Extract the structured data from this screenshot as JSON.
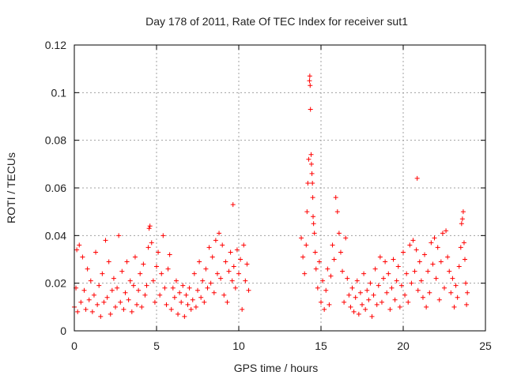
{
  "chart_data": {
    "type": "scatter",
    "title": "Day 178 of 2011, Rate Of TEC Index for receiver sut1",
    "xlabel": "GPS time / hours",
    "ylabel": "ROTI / TECUs",
    "xlim": [
      0,
      25
    ],
    "ylim": [
      0,
      0.12
    ],
    "x_ticks": [
      "0",
      "5",
      "10",
      "15",
      "20",
      "25"
    ],
    "y_ticks": [
      "0",
      "0.02",
      "0.04",
      "0.06",
      "0.08",
      "0.1",
      "0.12"
    ],
    "grid": true,
    "legend": "none",
    "marker": "plus",
    "color": "#ff0000",
    "points": [
      [
        0.0,
        0.01
      ],
      [
        0.1,
        0.018
      ],
      [
        0.15,
        0.034
      ],
      [
        0.2,
        0.008
      ],
      [
        0.3,
        0.036
      ],
      [
        0.4,
        0.012
      ],
      [
        0.5,
        0.031
      ],
      [
        0.6,
        0.017
      ],
      [
        0.7,
        0.009
      ],
      [
        0.8,
        0.026
      ],
      [
        0.9,
        0.013
      ],
      [
        1.0,
        0.021
      ],
      [
        1.1,
        0.008
      ],
      [
        1.2,
        0.015
      ],
      [
        1.3,
        0.033
      ],
      [
        1.4,
        0.011
      ],
      [
        1.5,
        0.019
      ],
      [
        1.6,
        0.006
      ],
      [
        1.7,
        0.024
      ],
      [
        1.8,
        0.012
      ],
      [
        1.9,
        0.038
      ],
      [
        2.0,
        0.014
      ],
      [
        2.1,
        0.029
      ],
      [
        2.2,
        0.007
      ],
      [
        2.3,
        0.017
      ],
      [
        2.4,
        0.022
      ],
      [
        2.5,
        0.01
      ],
      [
        2.6,
        0.018
      ],
      [
        2.7,
        0.04
      ],
      [
        2.8,
        0.012
      ],
      [
        2.9,
        0.025
      ],
      [
        3.0,
        0.009
      ],
      [
        3.1,
        0.016
      ],
      [
        3.2,
        0.029
      ],
      [
        3.3,
        0.013
      ],
      [
        3.4,
        0.021
      ],
      [
        3.5,
        0.008
      ],
      [
        3.6,
        0.019
      ],
      [
        3.7,
        0.031
      ],
      [
        3.8,
        0.011
      ],
      [
        3.9,
        0.017
      ],
      [
        4.0,
        0.024
      ],
      [
        4.1,
        0.01
      ],
      [
        4.2,
        0.028
      ],
      [
        4.3,
        0.015
      ],
      [
        4.4,
        0.019
      ],
      [
        4.5,
        0.035
      ],
      [
        4.55,
        0.043
      ],
      [
        4.6,
        0.044
      ],
      [
        4.7,
        0.037
      ],
      [
        4.8,
        0.021
      ],
      [
        4.9,
        0.012
      ],
      [
        5.0,
        0.027
      ],
      [
        5.1,
        0.033
      ],
      [
        5.2,
        0.015
      ],
      [
        5.3,
        0.024
      ],
      [
        5.4,
        0.04
      ],
      [
        5.5,
        0.018
      ],
      [
        5.6,
        0.011
      ],
      [
        5.7,
        0.026
      ],
      [
        5.8,
        0.032
      ],
      [
        5.9,
        0.009
      ],
      [
        6.0,
        0.018
      ],
      [
        6.1,
        0.014
      ],
      [
        6.2,
        0.021
      ],
      [
        6.3,
        0.007
      ],
      [
        6.4,
        0.016
      ],
      [
        6.5,
        0.012
      ],
      [
        6.6,
        0.019
      ],
      [
        6.7,
        0.006
      ],
      [
        6.8,
        0.015
      ],
      [
        6.9,
        0.011
      ],
      [
        7.0,
        0.018
      ],
      [
        7.1,
        0.009
      ],
      [
        7.2,
        0.013
      ],
      [
        7.3,
        0.024
      ],
      [
        7.4,
        0.01
      ],
      [
        7.5,
        0.017
      ],
      [
        7.6,
        0.029
      ],
      [
        7.7,
        0.014
      ],
      [
        7.8,
        0.021
      ],
      [
        7.9,
        0.012
      ],
      [
        8.0,
        0.026
      ],
      [
        8.1,
        0.018
      ],
      [
        8.2,
        0.035
      ],
      [
        8.3,
        0.02
      ],
      [
        8.4,
        0.031
      ],
      [
        8.5,
        0.016
      ],
      [
        8.6,
        0.038
      ],
      [
        8.7,
        0.024
      ],
      [
        8.8,
        0.041
      ],
      [
        8.9,
        0.022
      ],
      [
        9.0,
        0.036
      ],
      [
        9.1,
        0.015
      ],
      [
        9.2,
        0.029
      ],
      [
        9.3,
        0.012
      ],
      [
        9.4,
        0.025
      ],
      [
        9.5,
        0.033
      ],
      [
        9.6,
        0.021
      ],
      [
        9.65,
        0.053
      ],
      [
        9.7,
        0.027
      ],
      [
        9.8,
        0.018
      ],
      [
        9.9,
        0.034
      ],
      [
        10.0,
        0.024
      ],
      [
        10.1,
        0.03
      ],
      [
        10.2,
        0.009
      ],
      [
        10.3,
        0.036
      ],
      [
        10.4,
        0.021
      ],
      [
        10.5,
        0.028
      ],
      [
        10.6,
        0.017
      ],
      [
        13.8,
        0.039
      ],
      [
        13.9,
        0.031
      ],
      [
        14.0,
        0.024
      ],
      [
        14.1,
        0.036
      ],
      [
        14.15,
        0.05
      ],
      [
        14.2,
        0.062
      ],
      [
        14.25,
        0.072
      ],
      [
        14.3,
        0.105
      ],
      [
        14.32,
        0.107
      ],
      [
        14.34,
        0.103
      ],
      [
        14.36,
        0.093
      ],
      [
        14.4,
        0.074
      ],
      [
        14.42,
        0.07
      ],
      [
        14.45,
        0.066
      ],
      [
        14.48,
        0.062
      ],
      [
        14.5,
        0.056
      ],
      [
        14.52,
        0.048
      ],
      [
        14.55,
        0.045
      ],
      [
        14.6,
        0.041
      ],
      [
        14.65,
        0.033
      ],
      [
        14.7,
        0.026
      ],
      [
        14.8,
        0.018
      ],
      [
        14.9,
        0.029
      ],
      [
        15.0,
        0.012
      ],
      [
        15.1,
        0.021
      ],
      [
        15.2,
        0.009
      ],
      [
        15.3,
        0.017
      ],
      [
        15.4,
        0.026
      ],
      [
        15.5,
        0.011
      ],
      [
        15.6,
        0.023
      ],
      [
        15.7,
        0.036
      ],
      [
        15.8,
        0.03
      ],
      [
        15.9,
        0.056
      ],
      [
        16.0,
        0.05
      ],
      [
        16.1,
        0.041
      ],
      [
        16.2,
        0.033
      ],
      [
        16.3,
        0.025
      ],
      [
        16.4,
        0.012
      ],
      [
        16.5,
        0.039
      ],
      [
        16.6,
        0.022
      ],
      [
        16.7,
        0.015
      ],
      [
        16.8,
        0.01
      ],
      [
        16.9,
        0.018
      ],
      [
        17.0,
        0.008
      ],
      [
        17.1,
        0.014
      ],
      [
        17.2,
        0.021
      ],
      [
        17.3,
        0.007
      ],
      [
        17.4,
        0.016
      ],
      [
        17.5,
        0.011
      ],
      [
        17.6,
        0.024
      ],
      [
        17.7,
        0.009
      ],
      [
        17.8,
        0.017
      ],
      [
        17.9,
        0.013
      ],
      [
        18.0,
        0.02
      ],
      [
        18.1,
        0.006
      ],
      [
        18.2,
        0.015
      ],
      [
        18.3,
        0.026
      ],
      [
        18.4,
        0.011
      ],
      [
        18.5,
        0.019
      ],
      [
        18.6,
        0.031
      ],
      [
        18.7,
        0.012
      ],
      [
        18.8,
        0.022
      ],
      [
        18.9,
        0.029
      ],
      [
        19.0,
        0.016
      ],
      [
        19.1,
        0.024
      ],
      [
        19.2,
        0.009
      ],
      [
        19.3,
        0.018
      ],
      [
        19.4,
        0.03
      ],
      [
        19.5,
        0.013
      ],
      [
        19.6,
        0.021
      ],
      [
        19.7,
        0.027
      ],
      [
        19.8,
        0.01
      ],
      [
        19.9,
        0.019
      ],
      [
        20.0,
        0.033
      ],
      [
        20.1,
        0.015
      ],
      [
        20.2,
        0.024
      ],
      [
        20.3,
        0.012
      ],
      [
        20.4,
        0.036
      ],
      [
        20.5,
        0.02
      ],
      [
        20.6,
        0.038
      ],
      [
        20.7,
        0.025
      ],
      [
        20.8,
        0.034
      ],
      [
        20.85,
        0.064
      ],
      [
        20.9,
        0.017
      ],
      [
        21.0,
        0.029
      ],
      [
        21.1,
        0.021
      ],
      [
        21.2,
        0.014
      ],
      [
        21.3,
        0.032
      ],
      [
        21.4,
        0.01
      ],
      [
        21.5,
        0.025
      ],
      [
        21.6,
        0.016
      ],
      [
        21.7,
        0.037
      ],
      [
        21.8,
        0.028
      ],
      [
        21.9,
        0.039
      ],
      [
        22.0,
        0.022
      ],
      [
        22.1,
        0.035
      ],
      [
        22.2,
        0.013
      ],
      [
        22.3,
        0.029
      ],
      [
        22.4,
        0.041
      ],
      [
        22.5,
        0.018
      ],
      [
        22.6,
        0.042
      ],
      [
        22.7,
        0.031
      ],
      [
        22.8,
        0.025
      ],
      [
        22.9,
        0.016
      ],
      [
        23.0,
        0.022
      ],
      [
        23.1,
        0.01
      ],
      [
        23.2,
        0.019
      ],
      [
        23.3,
        0.014
      ],
      [
        23.4,
        0.027
      ],
      [
        23.5,
        0.035
      ],
      [
        23.55,
        0.045
      ],
      [
        23.6,
        0.047
      ],
      [
        23.65,
        0.05
      ],
      [
        23.7,
        0.037
      ],
      [
        23.75,
        0.03
      ],
      [
        23.8,
        0.02
      ],
      [
        23.85,
        0.011
      ],
      [
        23.9,
        0.016
      ]
    ]
  }
}
